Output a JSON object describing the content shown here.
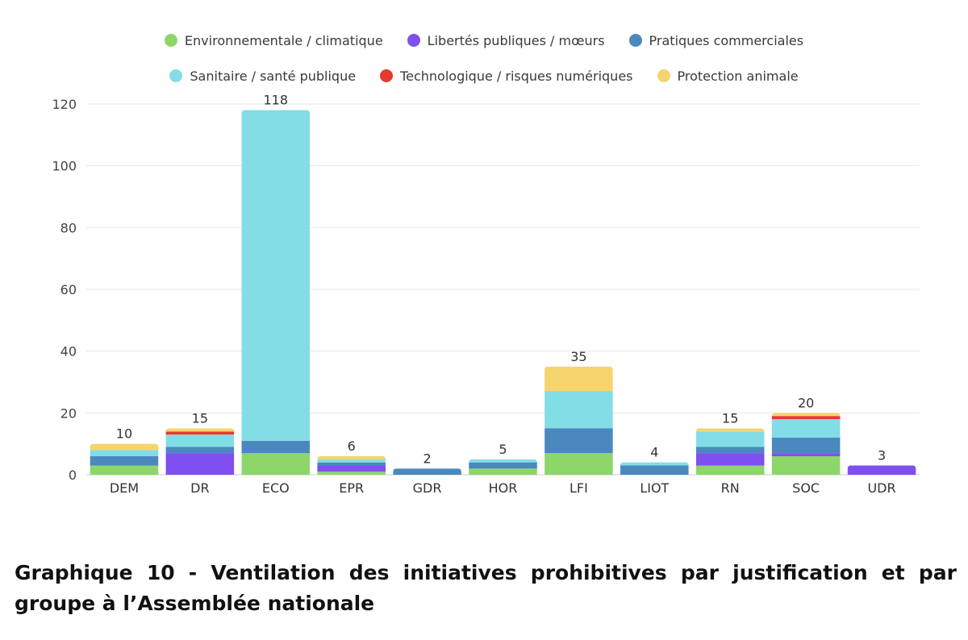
{
  "caption": "Graphique 10 - Ventilation des initiatives prohibitives par justification et par groupe à l’Assemblée nationale",
  "chart_data": {
    "type": "bar",
    "stacked": true,
    "categories": [
      "DEM",
      "DR",
      "ECO",
      "EPR",
      "GDR",
      "HOR",
      "LFI",
      "LIOT",
      "RN",
      "SOC",
      "UDR"
    ],
    "totals": [
      10,
      15,
      118,
      6,
      2,
      5,
      35,
      4,
      15,
      20,
      3
    ],
    "ylim": [
      0,
      120
    ],
    "yticks": [
      0,
      20,
      40,
      60,
      80,
      100,
      120
    ],
    "grid": true,
    "legend_position": "top",
    "series": [
      {
        "name": "Environnementale / climatique",
        "color": "#8dd66a",
        "values": [
          3,
          0,
          7,
          1,
          0,
          2,
          7,
          0,
          3,
          6,
          0
        ]
      },
      {
        "name": "Libertés publiques / mœurs",
        "color": "#7f4ff0",
        "values": [
          0,
          7,
          0,
          2,
          0,
          0,
          0,
          0,
          4,
          1,
          3
        ]
      },
      {
        "name": "Pratiques commerciales",
        "color": "#4a88be",
        "values": [
          3,
          2,
          4,
          1,
          2,
          2,
          8,
          3,
          2,
          5,
          0
        ]
      },
      {
        "name": "Sanitaire / santé publique",
        "color": "#83dde6",
        "values": [
          2,
          4,
          107,
          1,
          0,
          1,
          12,
          1,
          5,
          6,
          0
        ]
      },
      {
        "name": "Technologique / risques numériques",
        "color": "#e63a2e",
        "values": [
          0,
          1,
          0,
          0,
          0,
          0,
          0,
          0,
          0,
          1,
          0
        ]
      },
      {
        "name": "Protection animale",
        "color": "#f5d46e",
        "values": [
          2,
          1,
          0,
          1,
          0,
          0,
          8,
          0,
          1,
          1,
          0
        ]
      }
    ]
  }
}
